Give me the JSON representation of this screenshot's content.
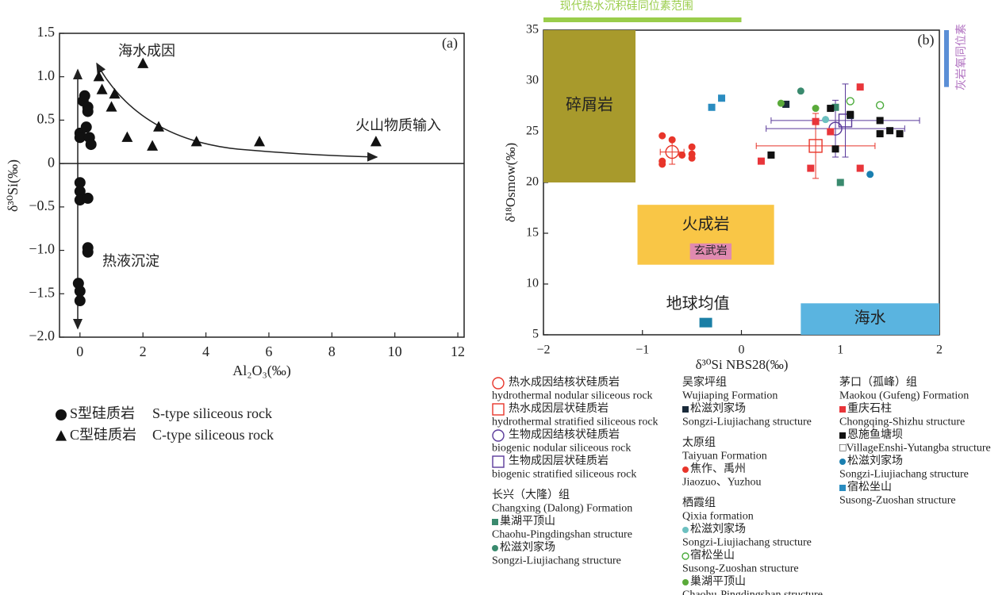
{
  "chart_data": [
    {
      "type": "scatter",
      "title": "(a)",
      "xlabel": "Al₂O₃(‰)",
      "ylabel": "δ³⁰Si(‰)",
      "annotations": [
        "海水成因",
        "火山物质输入",
        "热液沉淀"
      ],
      "xlim": [
        -0.65,
        12.2
      ],
      "ylim": [
        -2,
        1.5
      ],
      "xticks": [
        0,
        2,
        4,
        6,
        8,
        10,
        12
      ],
      "yticks": [
        {
          "value": 1.5,
          "label": "1.5"
        },
        {
          "value": 1,
          "label": "1.0"
        },
        {
          "value": 0.5,
          "label": "0.5"
        },
        0,
        {
          "value": -0.5,
          "label": "−0.5"
        },
        {
          "value": -1,
          "label": "−1.0"
        },
        {
          "value": -1.5,
          "label": "−1.5"
        },
        {
          "value": -2,
          "label": "−2.0"
        }
      ],
      "series": [
        {
          "name": "S型硅质岩",
          "name_en": "S-type siliceous rock",
          "marker": "circle",
          "color": "#111111",
          "x": [
            0,
            0,
            0.1,
            0.15,
            0.25,
            0.25,
            0.2,
            0.3,
            0.35,
            0,
            0,
            0,
            0.25,
            0.25,
            0.25,
            -0.05,
            0,
            0
          ],
          "y": [
            0.35,
            0.3,
            0.72,
            0.78,
            0.65,
            0.6,
            0.42,
            0.3,
            0.22,
            -0.22,
            -0.32,
            -0.42,
            -0.4,
            -0.97,
            -1.02,
            -1.38,
            -1.47,
            -1.58
          ]
        },
        {
          "name": "C型硅质岩",
          "name_en": "C-type siliceous rock",
          "marker": "triangle",
          "color": "#111111",
          "x": [
            0.6,
            0.7,
            1.0,
            1.1,
            1.5,
            2.0,
            2.3,
            2.5,
            3.7,
            5.7,
            9.4
          ],
          "y": [
            1.0,
            0.85,
            0.65,
            0.8,
            0.3,
            1.15,
            0.2,
            0.42,
            0.25,
            0.25,
            0.25
          ]
        }
      ]
    },
    {
      "type": "scatter",
      "title": "(b)",
      "xlabel": "δ³⁰Si NBS28(‰)",
      "ylabel": "δ¹⁸Osmow(‰)",
      "xlim": [
        -2,
        2
      ],
      "ylim": [
        5,
        35
      ],
      "xticks": [
        {
          "value": -2,
          "label": "−2"
        },
        {
          "value": -1,
          "label": "−1"
        },
        0,
        1,
        2
      ],
      "yticks": [
        5,
        10,
        15,
        20,
        25,
        30,
        35
      ],
      "regions": [
        {
          "label": "碎屑岩",
          "x": [
            -2,
            -1.07
          ],
          "y": [
            20,
            35
          ],
          "color": "#a89a2c"
        },
        {
          "label": "火成岩",
          "x": [
            -1.05,
            0.33
          ],
          "y": [
            11.9,
            17.8
          ],
          "color": "#f9c646"
        },
        {
          "label": "玄武岩",
          "x": [
            -0.52,
            -0.1
          ],
          "y": [
            12.4,
            14.0
          ],
          "color": "#e08ab0"
        },
        {
          "label": "海水",
          "x": [
            0.6,
            2
          ],
          "y": [
            5,
            8.1
          ],
          "color": "#5ab4e0"
        }
      ],
      "x_range": {
        "label": "现代热水沉积硅同位素范围",
        "x": [
          -2,
          0
        ],
        "color": "#9acd4b"
      },
      "y_range": {
        "label": "灰岩氧同位素",
        "y": [
          29.4,
          35
        ],
        "color": "#5b8fd6"
      },
      "reference_point": {
        "label": "地球均值",
        "x": -0.36,
        "y": 6.2,
        "color": "#1b7fa6"
      },
      "groups": [
        {
          "items": [
            {
              "name": "热水成因结核状硅质岩",
              "name_en": "hydrothermal nodular siliceous rock",
              "marker": "circle",
              "filled": false,
              "color": "#e8352a",
              "x": [
                -0.7
              ],
              "y": [
                23
              ],
              "xerr": [
                0.12
              ],
              "yerr": [
                1.2
              ]
            },
            {
              "name": "热水成因层状硅质岩",
              "name_en": "hydrothermal stratified siliceous rock",
              "marker": "square",
              "filled": false,
              "color": "#e8352a",
              "x": [
                0.75
              ],
              "y": [
                23.6
              ],
              "xerr": [
                0.6
              ],
              "yerr": [
                3.2
              ]
            },
            {
              "name": "生物成因结核状硅质岩",
              "name_en": "biogenic nodular siliceous rock",
              "marker": "circle",
              "filled": false,
              "color": "#5a3a9a",
              "x": [
                0.95
              ],
              "y": [
                25.3
              ],
              "xerr": [
                0.7
              ],
              "yerr": [
                2.8
              ]
            },
            {
              "name": "生物成因层状硅质岩",
              "name_en": "biogenic stratified siliceous rock",
              "marker": "square",
              "filled": false,
              "color": "#5a3a9a",
              "x": [
                1.05
              ],
              "y": [
                26.1
              ],
              "xerr": [
                0.75
              ],
              "yerr": [
                3.6
              ]
            }
          ]
        },
        {
          "title": "长兴（大隆）组",
          "title_en": "Changxing (Dalong) Formation",
          "items": [
            {
              "name": "巢湖平顶山",
              "name_en": "Chaohu-Pingdingshan structure",
              "marker": "square",
              "filled": true,
              "color": "#3a8a6e",
              "x": [
                0.95,
                1.0
              ],
              "y": [
                27.4,
                20.0
              ]
            },
            {
              "name": "松滋刘家场",
              "name_en": "Songzi-Liujiachang structure",
              "marker": "circle",
              "filled": true,
              "color": "#3a8a6e",
              "x": [
                0.6
              ],
              "y": [
                29.0
              ]
            }
          ]
        },
        {
          "title": "吴家坪组",
          "title_en": "Wujiaping Formation",
          "items": [
            {
              "name": "松滋刘家场",
              "name_en": "Songzi-Liujiachang structure",
              "marker": "square",
              "filled": true,
              "color": "#1a2a3a",
              "x": [
                0.45,
                1.1
              ],
              "y": [
                27.7,
                26.6
              ]
            }
          ]
        },
        {
          "title": "太原组",
          "title_en": "Taiyuan Formation",
          "items": [
            {
              "name": "焦作、禹州",
              "name_en": "Jiaozuo、Yuzhou",
              "marker": "circle",
              "filled": true,
              "color": "#e8352a",
              "x": [
                -0.8,
                -0.8,
                -0.7,
                -0.8,
                -0.6,
                -0.5,
                -0.5,
                -0.5
              ],
              "y": [
                22.1,
                24.6,
                24.2,
                21.8,
                22.7,
                23.5,
                22.4,
                22.8
              ]
            }
          ]
        },
        {
          "title": "栖霞组",
          "title_en": "Qixia formation",
          "items": [
            {
              "name": "松滋刘家场",
              "name_en": "Songzi-Liujiachang structure",
              "marker": "circle",
              "filled": true,
              "color": "#6cc0c0",
              "x": [
                0.85
              ],
              "y": [
                26.2
              ]
            },
            {
              "name": "宿松坐山",
              "name_en": "Susong-Zuoshan structure",
              "marker": "circle",
              "filled": false,
              "color": "#4aaa3a",
              "x": [
                1.1,
                1.4
              ],
              "y": [
                28.0,
                27.6
              ]
            },
            {
              "name": "巢湖平顶山",
              "name_en": "Chaohu-Pingdingshan structure",
              "marker": "circle",
              "filled": true,
              "color": "#5aaa3a",
              "x": [
                0.4,
                0.75
              ],
              "y": [
                27.8,
                27.3
              ]
            }
          ]
        },
        {
          "title": "茅口（孤峰）组",
          "title_en": "Maokou (Gufeng) Formation",
          "items": [
            {
              "name": "重庆石柱",
              "name_en": "Chongqing-Shizhu structure",
              "marker": "square",
              "filled": true,
              "color": "#e8353a",
              "x": [
                0.2,
                0.7,
                1.2,
                0.75,
                1.2,
                0.9
              ],
              "y": [
                22.1,
                21.4,
                29.4,
                26.0,
                21.4,
                25.0
              ]
            },
            {
              "name": "恩施鱼塘坝",
              "name_en": "□VillageEnshi-Yutangba structure",
              "marker": "square",
              "filled": true,
              "color": "#111111",
              "x": [
                0.3,
                0.9,
                0.95,
                1.1,
                1.4,
                1.4,
                1.5,
                1.6
              ],
              "y": [
                22.7,
                27.3,
                23.3,
                26.7,
                26.1,
                24.8,
                25.1,
                24.8
              ]
            },
            {
              "name": "松滋刘家场",
              "name_en": "Songzi-Liujiachang structure",
              "marker": "circle",
              "filled": true,
              "color": "#1a7fb0",
              "x": [
                1.3
              ],
              "y": [
                20.8
              ]
            },
            {
              "name": "宿松坐山",
              "name_en": "Susong-Zuoshan structure",
              "marker": "square",
              "filled": true,
              "color": "#2a8cc0",
              "x": [
                -0.2,
                -0.3
              ],
              "y": [
                28.3,
                27.4
              ]
            }
          ]
        }
      ]
    }
  ]
}
